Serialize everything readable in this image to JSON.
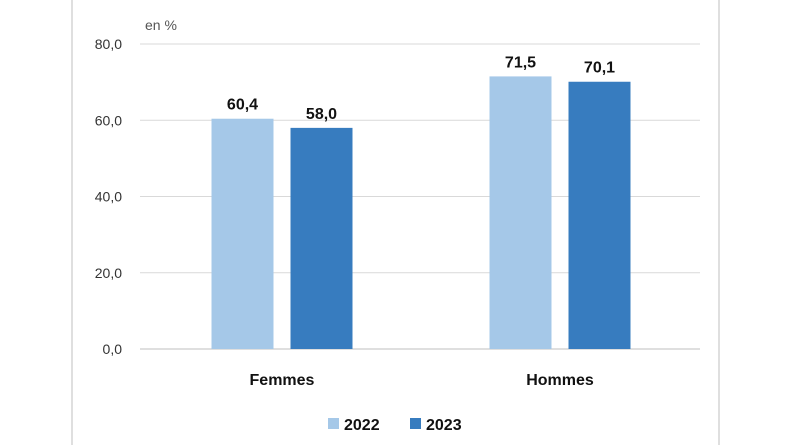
{
  "chart_data": {
    "type": "bar",
    "unit_label": "en %",
    "categories": [
      "Femmes",
      "Hommes"
    ],
    "series": [
      {
        "name": "2022",
        "values": [
          60.4,
          71.5
        ],
        "labels": [
          "60,4",
          "71,5"
        ],
        "color": "#a5c8e8"
      },
      {
        "name": "2023",
        "values": [
          58.0,
          70.1
        ],
        "labels": [
          "58,0",
          "70,1"
        ],
        "color": "#377cbf"
      }
    ],
    "ylim": [
      0,
      80
    ],
    "yticks": [
      0,
      20,
      40,
      60,
      80
    ],
    "ytick_labels": [
      "0,0",
      "20,0",
      "40,0",
      "60,0",
      "80,0"
    ],
    "grid": true,
    "legend_position": "bottom",
    "colors": {
      "grid": "#d9d9d9",
      "frame": "#bfbfbf"
    }
  }
}
